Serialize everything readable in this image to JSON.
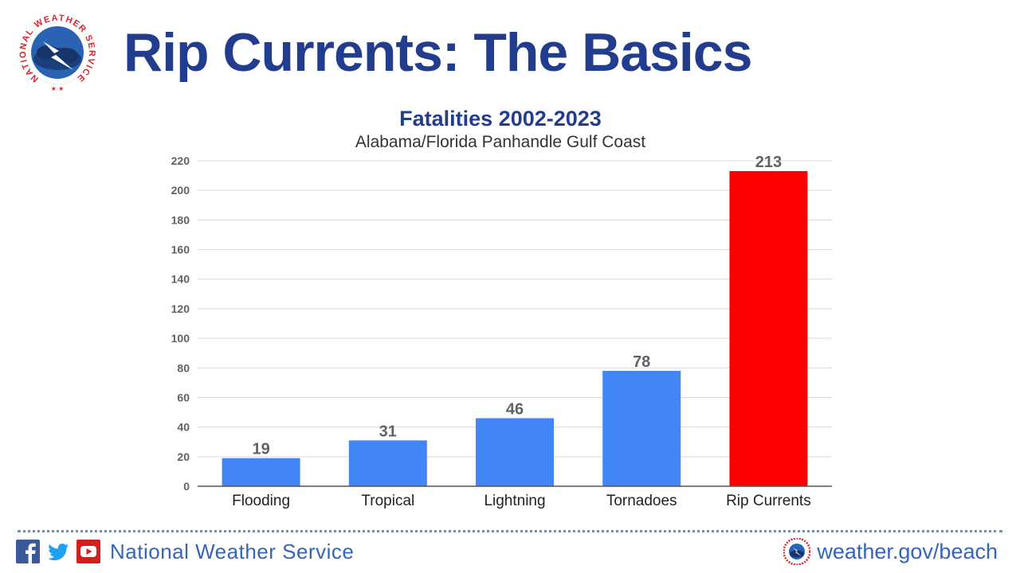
{
  "header": {
    "title": "Rip Currents: The Basics",
    "logo_text": "NATIONAL WEATHER SERVICE",
    "logo_icon": "nws-logo-icon"
  },
  "colors": {
    "title": "#233d8e",
    "bar_default": "#4285f4",
    "bar_highlight": "#ff0000",
    "footer_text": "#3565b8"
  },
  "chart_data": {
    "type": "bar",
    "title": "Fatalities 2002-2023",
    "subtitle": "Alabama/Florida Panhandle Gulf Coast",
    "categories": [
      "Flooding",
      "Tropical",
      "Lightning",
      "Tornadoes",
      "Rip Currents"
    ],
    "values": [
      19,
      31,
      46,
      78,
      213
    ],
    "bar_colors": [
      "#4285f4",
      "#4285f4",
      "#4285f4",
      "#4285f4",
      "#ff0000"
    ],
    "ylim": [
      0,
      220
    ],
    "yticks": [
      0,
      20,
      40,
      60,
      80,
      100,
      120,
      140,
      160,
      180,
      200,
      220
    ],
    "grid": true,
    "data_labels": true,
    "xlabel": "",
    "ylabel": ""
  },
  "footer": {
    "social_icons": [
      "facebook-icon",
      "twitter-icon",
      "youtube-icon"
    ],
    "org_name": "National Weather Service",
    "url": "weather.gov/beach"
  }
}
